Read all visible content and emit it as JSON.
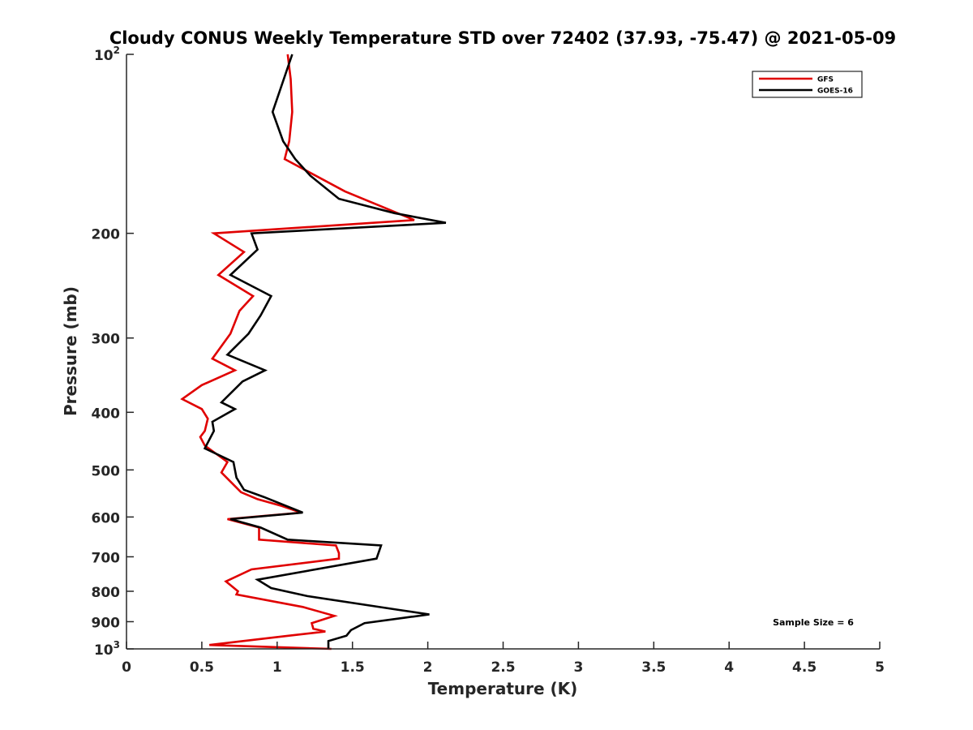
{
  "chart_data": {
    "type": "line",
    "title": "Cloudy CONUS Weekly Temperature STD over 72402 (37.93, -75.47) @ 2021-05-09",
    "xlabel": "Temperature (K)",
    "ylabel": "Pressure (mb)",
    "xlim": [
      0,
      5
    ],
    "ylim": [
      1000,
      100
    ],
    "yscale": "log",
    "y_reversed": true,
    "grid": false,
    "legend_position": "top-right",
    "x_ticks": [
      "0",
      "0.5",
      "1",
      "1.5",
      "2",
      "2.5",
      "3",
      "3.5",
      "4",
      "4.5",
      "5"
    ],
    "y_tick_values": [
      100,
      200,
      300,
      400,
      500,
      600,
      700,
      800,
      900,
      1000
    ],
    "y_tick_labels": [
      {
        "base": "10",
        "sup": "2"
      },
      {
        "base": "200",
        "sup": ""
      },
      {
        "base": "300",
        "sup": ""
      },
      {
        "base": "400",
        "sup": ""
      },
      {
        "base": "500",
        "sup": ""
      },
      {
        "base": "600",
        "sup": ""
      },
      {
        "base": "700",
        "sup": ""
      },
      {
        "base": "800",
        "sup": ""
      },
      {
        "base": "900",
        "sup": ""
      },
      {
        "base": "10",
        "sup": "3"
      }
    ],
    "annotation": "Sample Size = 6",
    "series": [
      {
        "name": "GFS",
        "color": "#e00000",
        "points": [
          [
            1.07,
            100
          ],
          [
            1.09,
            110
          ],
          [
            1.1,
            125
          ],
          [
            1.08,
            140
          ],
          [
            1.05,
            150
          ],
          [
            1.45,
            170
          ],
          [
            1.91,
            190
          ],
          [
            0.58,
            200
          ],
          [
            0.78,
            215
          ],
          [
            0.61,
            235
          ],
          [
            0.84,
            255
          ],
          [
            0.75,
            270
          ],
          [
            0.69,
            295
          ],
          [
            0.57,
            325
          ],
          [
            0.72,
            340
          ],
          [
            0.5,
            360
          ],
          [
            0.37,
            380
          ],
          [
            0.5,
            395
          ],
          [
            0.54,
            410
          ],
          [
            0.52,
            430
          ],
          [
            0.49,
            440
          ],
          [
            0.52,
            455
          ],
          [
            0.67,
            485
          ],
          [
            0.63,
            505
          ],
          [
            0.68,
            520
          ],
          [
            0.76,
            545
          ],
          [
            0.87,
            560
          ],
          [
            1.03,
            575
          ],
          [
            1.16,
            590
          ],
          [
            0.67,
            605
          ],
          [
            0.88,
            625
          ],
          [
            0.88,
            655
          ],
          [
            1.39,
            670
          ],
          [
            1.41,
            690
          ],
          [
            1.41,
            705
          ],
          [
            0.83,
            735
          ],
          [
            0.66,
            770
          ],
          [
            0.7,
            785
          ],
          [
            0.74,
            800
          ],
          [
            0.73,
            810
          ],
          [
            1.17,
            850
          ],
          [
            1.38,
            880
          ],
          [
            1.23,
            905
          ],
          [
            1.24,
            925
          ],
          [
            1.32,
            935
          ],
          [
            1.24,
            940
          ],
          [
            1.08,
            950
          ],
          [
            0.55,
            985
          ],
          [
            1.36,
            1000
          ]
        ]
      },
      {
        "name": "GOES-16",
        "color": "#000000",
        "points": [
          [
            1.1,
            100
          ],
          [
            0.97,
            125
          ],
          [
            1.04,
            140
          ],
          [
            1.12,
            150
          ],
          [
            1.22,
            160
          ],
          [
            1.41,
            175
          ],
          [
            1.78,
            185
          ],
          [
            2.12,
            192
          ],
          [
            0.83,
            200
          ],
          [
            0.87,
            213
          ],
          [
            0.69,
            235
          ],
          [
            0.96,
            255
          ],
          [
            0.89,
            275
          ],
          [
            0.81,
            295
          ],
          [
            0.67,
            320
          ],
          [
            0.92,
            340
          ],
          [
            0.77,
            355
          ],
          [
            0.63,
            385
          ],
          [
            0.72,
            395
          ],
          [
            0.57,
            415
          ],
          [
            0.58,
            430
          ],
          [
            0.52,
            460
          ],
          [
            0.71,
            485
          ],
          [
            0.73,
            515
          ],
          [
            0.78,
            540
          ],
          [
            0.91,
            555
          ],
          [
            1.17,
            590
          ],
          [
            0.69,
            605
          ],
          [
            0.89,
            625
          ],
          [
            1.07,
            655
          ],
          [
            1.69,
            670
          ],
          [
            1.66,
            705
          ],
          [
            0.87,
            765
          ],
          [
            0.96,
            790
          ],
          [
            1.2,
            815
          ],
          [
            1.81,
            860
          ],
          [
            2.01,
            875
          ],
          [
            1.58,
            905
          ],
          [
            1.49,
            930
          ],
          [
            1.46,
            950
          ],
          [
            1.34,
            970
          ],
          [
            1.34,
            1000
          ]
        ]
      }
    ]
  }
}
